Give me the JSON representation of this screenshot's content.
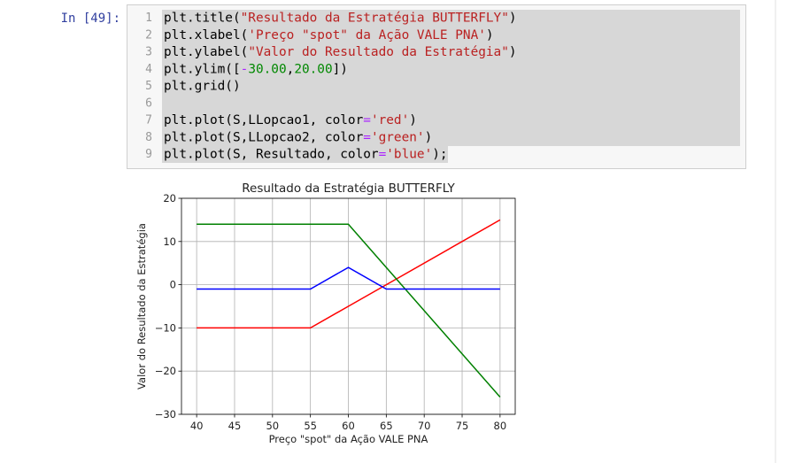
{
  "prompt": "In [49]:",
  "code": {
    "line_numbers": [
      1,
      2,
      3,
      4,
      5,
      6,
      7,
      8,
      9
    ],
    "lines": [
      [
        {
          "text": "plt.title("
        },
        {
          "text": "\"Resultado da Estratégia BUTTERFLY\"",
          "color": "#ba2121"
        },
        {
          "text": ")"
        }
      ],
      [
        {
          "text": "plt.xlabel("
        },
        {
          "text": "'Preço \"spot\" da Ação VALE PNA'",
          "color": "#ba2121"
        },
        {
          "text": ")"
        }
      ],
      [
        {
          "text": "plt.ylabel("
        },
        {
          "text": "\"Valor do Resultado da Estratégia\"",
          "color": "#ba2121"
        },
        {
          "text": ")"
        }
      ],
      [
        {
          "text": "plt.ylim(["
        },
        {
          "text": "-",
          "color": "#aa22ff"
        },
        {
          "text": "30.00",
          "color": "#008800"
        },
        {
          "text": ","
        },
        {
          "text": "20.00",
          "color": "#008800"
        },
        {
          "text": "])"
        }
      ],
      [
        {
          "text": "plt.grid()"
        }
      ],
      [],
      [
        {
          "text": "plt.plot(S,LLopcao1, color"
        },
        {
          "text": "=",
          "color": "#aa22ff"
        },
        {
          "text": "'red'",
          "color": "#ba2121"
        },
        {
          "text": ")"
        }
      ],
      [
        {
          "text": "plt.plot(S,LLopcao2, color"
        },
        {
          "text": "=",
          "color": "#aa22ff"
        },
        {
          "text": "'green'",
          "color": "#ba2121"
        },
        {
          "text": ")"
        }
      ],
      [
        {
          "text": "plt.plot(S, Resultado, color"
        },
        {
          "text": "=",
          "color": "#aa22ff"
        },
        {
          "text": "'blue'",
          "color": "#ba2121"
        },
        {
          "text": ");"
        }
      ]
    ]
  },
  "chart_data": {
    "type": "line",
    "title": "Resultado da Estratégia BUTTERFLY",
    "xlabel": "Preço \"spot\" da Ação VALE PNA",
    "ylabel": "Valor do Resultado da Estratégia",
    "x": [
      40,
      55,
      60,
      65,
      80
    ],
    "series": [
      {
        "color": "red",
        "values": [
          -10,
          -10,
          -5,
          0,
          15
        ]
      },
      {
        "color": "green",
        "values": [
          14,
          14,
          14,
          4,
          -26
        ]
      },
      {
        "color": "blue",
        "values": [
          -1,
          -1,
          4,
          -1,
          -1
        ]
      }
    ],
    "xlim": [
      38,
      82
    ],
    "xticks": [
      40,
      45,
      50,
      55,
      60,
      65,
      70,
      75,
      80
    ],
    "ylim": [
      -30,
      20
    ],
    "yticks": [
      {
        "value": -30,
        "label": "−30"
      },
      {
        "value": -20,
        "label": "−20"
      },
      {
        "value": -10,
        "label": "−10"
      },
      0,
      10,
      20
    ],
    "grid": true
  }
}
